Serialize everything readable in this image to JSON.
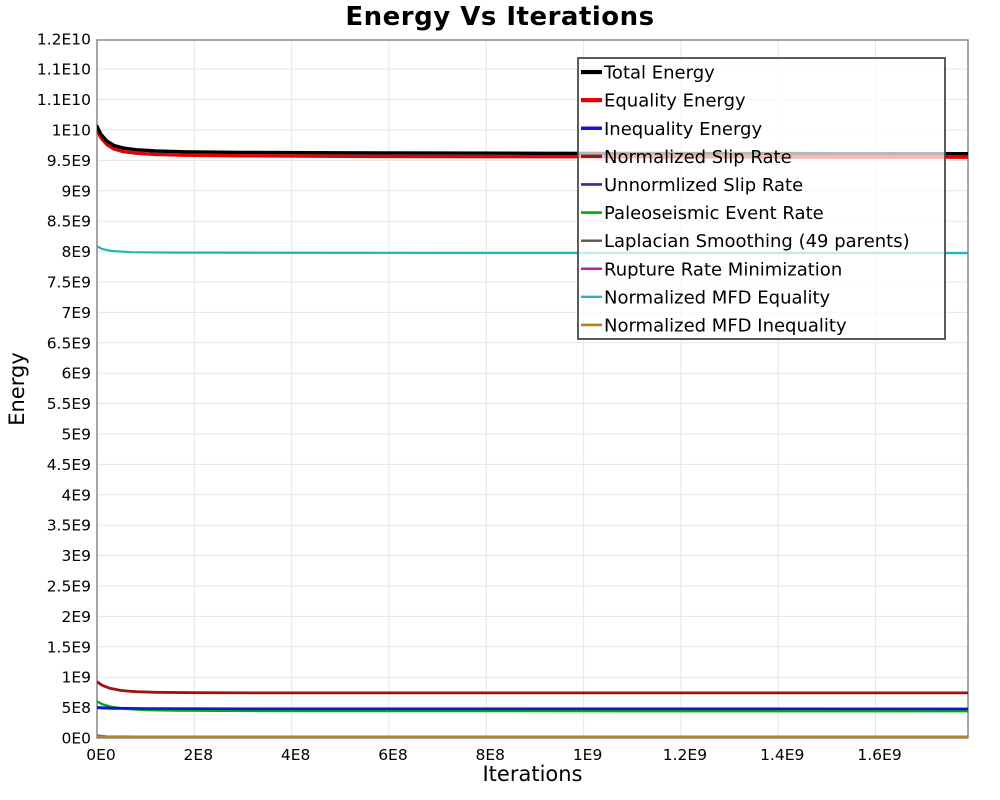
{
  "chart_data": {
    "type": "line",
    "title": "Energy Vs Iterations",
    "xlabel": "Iterations",
    "ylabel": "Energy",
    "xlim": [
      0,
      1790000000.0
    ],
    "ylim": [
      0,
      11480000000.0
    ],
    "grid": true,
    "grid_color": "#e6e6e6",
    "border_color": "#808080",
    "x_ticks": [
      {
        "v": 0,
        "label": "0E0"
      },
      {
        "v": 200000000.0,
        "label": "2E8"
      },
      {
        "v": 400000000.0,
        "label": "4E8"
      },
      {
        "v": 600000000.0,
        "label": "6E8"
      },
      {
        "v": 800000000.0,
        "label": "8E8"
      },
      {
        "v": 1000000000.0,
        "label": "1E9"
      },
      {
        "v": 1200000000.0,
        "label": "1.2E9"
      },
      {
        "v": 1400000000.0,
        "label": "1.4E9"
      },
      {
        "v": 1600000000.0,
        "label": "1.6E9"
      }
    ],
    "y_ticks": [
      {
        "v": 0,
        "label": "0E0"
      },
      {
        "v": 500000000.0,
        "label": "5E8"
      },
      {
        "v": 1000000000.0,
        "label": "1E9"
      },
      {
        "v": 1500000000.0,
        "label": "1.5E9"
      },
      {
        "v": 2000000000.0,
        "label": "2E9"
      },
      {
        "v": 2500000000.0,
        "label": "2.5E9"
      },
      {
        "v": 3000000000.0,
        "label": "3E9"
      },
      {
        "v": 3500000000.0,
        "label": "3.5E9"
      },
      {
        "v": 4000000000.0,
        "label": "4E9"
      },
      {
        "v": 4500000000.0,
        "label": "4.5E9"
      },
      {
        "v": 5000000000.0,
        "label": "5E9"
      },
      {
        "v": 5500000000.0,
        "label": "5.5E9"
      },
      {
        "v": 6000000000.0,
        "label": "6E9"
      },
      {
        "v": 6500000000.0,
        "label": "6.5E9"
      },
      {
        "v": 7000000000.0,
        "label": "7E9"
      },
      {
        "v": 7500000000.0,
        "label": "7.5E9"
      },
      {
        "v": 8000000000.0,
        "label": "8E9"
      },
      {
        "v": 8500000000.0,
        "label": "8.5E9"
      },
      {
        "v": 9000000000.0,
        "label": "9E9"
      },
      {
        "v": 9500000000.0,
        "label": "9.5E9"
      },
      {
        "v": 10000000000.0,
        "label": "1E10"
      },
      {
        "v": 10500000000.0,
        "label": "1.1E10"
      },
      {
        "v": 11000000000.0,
        "label": "1.1E10"
      },
      {
        "v": 11500000000.0,
        "label": "1.2E10"
      }
    ],
    "series": [
      {
        "name": "normalized-mfd-equality",
        "label": "Normalized MFD Equality",
        "color": "#25b7b7",
        "width": 2.2,
        "points": [
          [
            0,
            8090000000.0
          ],
          [
            10000000.0,
            8045000000.0
          ],
          [
            30000000.0,
            8010000000.0
          ],
          [
            70000000.0,
            7990000000.0
          ],
          [
            150000000.0,
            7983000000.0
          ],
          [
            500000000.0,
            7979000000.0
          ],
          [
            1000000000.0,
            7977000000.0
          ],
          [
            1790000000.0,
            7975000000.0
          ]
        ]
      },
      {
        "name": "normalized-slip-rate",
        "label": "Normalized Slip Rate",
        "color": "#9e1212",
        "width": 2.8,
        "points": [
          [
            0,
            925000000.0
          ],
          [
            10000000.0,
            868000000.0
          ],
          [
            25000000.0,
            820000000.0
          ],
          [
            50000000.0,
            782000000.0
          ],
          [
            80000000.0,
            762000000.0
          ],
          [
            120000000.0,
            752000000.0
          ],
          [
            200000000.0,
            745000000.0
          ],
          [
            350000000.0,
            742000000.0
          ],
          [
            700000000.0,
            741000000.0
          ],
          [
            1200000000.0,
            741000000.0
          ],
          [
            1790000000.0,
            742000000.0
          ]
        ]
      },
      {
        "name": "unnormlized-slip-rate",
        "label": "Unnormlized Slip Rate",
        "color": "#232d9e",
        "width": 2.2,
        "points": [
          [
            0,
            493000000.0
          ],
          [
            30000000.0,
            484000000.0
          ],
          [
            100000000.0,
            479000000.0
          ],
          [
            300000000.0,
            476000000.0
          ],
          [
            800000000.0,
            475000000.0
          ],
          [
            1790000000.0,
            474000000.0
          ]
        ]
      },
      {
        "name": "paleoseismic-event-rate",
        "label": "Paleoseismic Event Rate",
        "color": "#00ad00",
        "width": 2.4,
        "points": [
          [
            0,
            602000000.0
          ],
          [
            12000000.0,
            552000000.0
          ],
          [
            30000000.0,
            512000000.0
          ],
          [
            60000000.0,
            478000000.0
          ],
          [
            100000000.0,
            461000000.0
          ],
          [
            160000000.0,
            452000000.0
          ],
          [
            250000000.0,
            447000000.0
          ],
          [
            450000000.0,
            444000000.0
          ],
          [
            800000000.0,
            442000000.0
          ],
          [
            1300000000.0,
            441000000.0
          ],
          [
            1790000000.0,
            441000000.0
          ]
        ]
      },
      {
        "name": "inequality-energy",
        "label": "Inequality Energy",
        "color": "#1212dd",
        "width": 2.6,
        "points": [
          [
            0,
            503000000.0
          ],
          [
            30000000.0,
            491000000.0
          ],
          [
            100000000.0,
            485000000.0
          ],
          [
            300000000.0,
            481000000.0
          ],
          [
            800000000.0,
            480000000.0
          ],
          [
            1790000000.0,
            479000000.0
          ]
        ]
      },
      {
        "name": "laplacian-smoothing",
        "label": "Laplacian Smoothing (49 parents)",
        "color": "#555555",
        "width": 1.8,
        "points": [
          [
            0,
            30000000.0
          ],
          [
            20000000.0,
            19000000.0
          ],
          [
            80000000.0,
            16000000.0
          ],
          [
            1790000000.0,
            15000000.0
          ]
        ]
      },
      {
        "name": "rupture-rate-minimization",
        "label": "Rupture Rate Minimization",
        "color": "#c517c5",
        "width": 1.8,
        "points": [
          [
            0,
            45000000.0
          ],
          [
            20000000.0,
            28000000.0
          ],
          [
            80000000.0,
            25000000.0
          ],
          [
            1790000000.0,
            24000000.0
          ]
        ]
      },
      {
        "name": "normalized-mfd-inequality",
        "label": "Normalized MFD Inequality",
        "color": "#b5831c",
        "width": 3.0,
        "points": [
          [
            0,
            18000000.0
          ],
          [
            20000000.0,
            11000000.0
          ],
          [
            80000000.0,
            9000000.0
          ],
          [
            1790000000.0,
            8000000.0
          ]
        ]
      },
      {
        "name": "equality-energy",
        "label": "Equality Energy",
        "color": "#e60000",
        "width": 3.4,
        "points": [
          [
            0,
            10000000000.0
          ],
          [
            8000000.0,
            9873000000.0
          ],
          [
            20000000.0,
            9763000000.0
          ],
          [
            35000000.0,
            9688000000.0
          ],
          [
            55000000.0,
            9643000000.0
          ],
          [
            80000000.0,
            9618000000.0
          ],
          [
            120000000.0,
            9598000000.0
          ],
          [
            180000000.0,
            9585000000.0
          ],
          [
            300000000.0,
            9575000000.0
          ],
          [
            500000000.0,
            9568000000.0
          ],
          [
            900000000.0,
            9560000000.0
          ],
          [
            1400000000.0,
            9555000000.0
          ],
          [
            1790000000.0,
            9553000000.0
          ]
        ]
      },
      {
        "name": "total-energy",
        "label": "Total Energy",
        "color": "#000000",
        "width": 3.4,
        "points": [
          [
            0,
            10060000000.0
          ],
          [
            8000000.0,
            9930000000.0
          ],
          [
            20000000.0,
            9820000000.0
          ],
          [
            35000000.0,
            9745000000.0
          ],
          [
            55000000.0,
            9700000000.0
          ],
          [
            80000000.0,
            9675000000.0
          ],
          [
            120000000.0,
            9655000000.0
          ],
          [
            180000000.0,
            9642000000.0
          ],
          [
            300000000.0,
            9632000000.0
          ],
          [
            500000000.0,
            9625000000.0
          ],
          [
            900000000.0,
            9617000000.0
          ],
          [
            1400000000.0,
            9612000000.0
          ],
          [
            1790000000.0,
            9610000000.0
          ]
        ]
      }
    ],
    "legend": {
      "position": "inside-top-right",
      "background": "rgba(255,255,255,0.72)",
      "border_color": "#4a4a4a",
      "entries": [
        {
          "label": "Total Energy",
          "color": "#000000",
          "line_width": 4.2
        },
        {
          "label": "Equality Energy",
          "color": "#e60000",
          "line_width": 4.2
        },
        {
          "label": "Inequality Energy",
          "color": "#1212dd",
          "line_width": 3.4
        },
        {
          "label": "Normalized Slip Rate",
          "color": "#9e1212",
          "line_width": 3.4
        },
        {
          "label": "Unnormlized Slip Rate",
          "color": "#232d9e",
          "line_width": 2.6
        },
        {
          "label": "Paleoseismic Event Rate",
          "color": "#00ad00",
          "line_width": 2.6
        },
        {
          "label": "Laplacian Smoothing (49 parents)",
          "color": "#555555",
          "line_width": 2.4
        },
        {
          "label": "Rupture Rate Minimization",
          "color": "#c517c5",
          "line_width": 2.4
        },
        {
          "label": "Normalized MFD Equality",
          "color": "#25b7b7",
          "line_width": 2.4
        },
        {
          "label": "Normalized MFD Inequality",
          "color": "#b5831c",
          "line_width": 2.6
        }
      ]
    }
  }
}
